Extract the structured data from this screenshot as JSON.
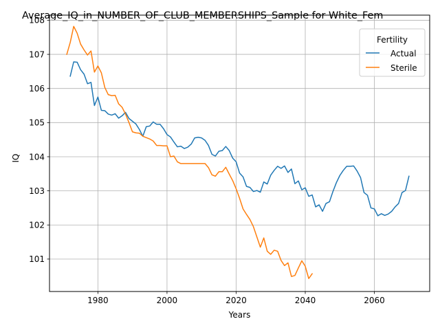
{
  "chart_data": {
    "type": "line",
    "title": "Average_IQ_in_NUMBER_OF_CLUB_MEMBERSHIPS_Sample for White_Fem",
    "xlabel": "Years",
    "ylabel": "IQ",
    "xlim": [
      1966,
      2076
    ],
    "ylim": [
      100.05,
      108.15
    ],
    "x_ticks": [
      1980,
      2000,
      2020,
      2040,
      2060
    ],
    "y_ticks": [
      101,
      102,
      103,
      104,
      105,
      106,
      107,
      108
    ],
    "grid": true,
    "legend": {
      "title": "Fertility",
      "placement": "top-right"
    },
    "series": [
      {
        "name": "Actual",
        "color": "#1f77b4",
        "x": [
          1972,
          1973,
          1974,
          1975,
          1976,
          1977,
          1978,
          1979,
          1980,
          1981,
          1982,
          1983,
          1984,
          1985,
          1986,
          1987,
          1988,
          1989,
          1990,
          1991,
          1992,
          1993,
          1994,
          1995,
          1996,
          1997,
          1998,
          1999,
          2000,
          2001,
          2002,
          2003,
          2004,
          2005,
          2006,
          2007,
          2008,
          2009,
          2010,
          2011,
          2012,
          2013,
          2014,
          2015,
          2016,
          2017,
          2018,
          2019,
          2020,
          2021,
          2022,
          2023,
          2024,
          2025,
          2026,
          2027,
          2028,
          2029,
          2030,
          2031,
          2032,
          2033,
          2034,
          2035,
          2036,
          2037,
          2038,
          2039,
          2040,
          2041,
          2042,
          2043,
          2044,
          2045,
          2046,
          2047,
          2048,
          2049,
          2050,
          2051,
          2052,
          2053,
          2054,
          2055,
          2056,
          2057,
          2058,
          2059,
          2060,
          2061,
          2062,
          2063,
          2064,
          2065,
          2066,
          2067,
          2068,
          2069,
          2070
        ],
        "values": [
          106.36,
          106.78,
          106.77,
          106.55,
          106.42,
          106.14,
          106.18,
          105.5,
          105.75,
          105.36,
          105.35,
          105.25,
          105.22,
          105.26,
          105.13,
          105.2,
          105.3,
          105.12,
          105.04,
          104.96,
          104.8,
          104.6,
          104.88,
          104.9,
          105.02,
          104.95,
          104.95,
          104.82,
          104.65,
          104.58,
          104.43,
          104.29,
          104.31,
          104.24,
          104.28,
          104.37,
          104.55,
          104.57,
          104.55,
          104.48,
          104.33,
          104.07,
          104.02,
          104.16,
          104.18,
          104.3,
          104.18,
          103.96,
          103.85,
          103.52,
          103.41,
          103.13,
          103.1,
          102.98,
          103.01,
          102.96,
          103.26,
          103.2,
          103.46,
          103.6,
          103.72,
          103.66,
          103.73,
          103.54,
          103.64,
          103.21,
          103.29,
          103.03,
          103.09,
          102.84,
          102.88,
          102.53,
          102.59,
          102.4,
          102.63,
          102.68,
          102.98,
          103.24,
          103.45,
          103.6,
          103.72,
          103.72,
          103.73,
          103.58,
          103.39,
          102.95,
          102.87,
          102.5,
          102.47,
          102.27,
          102.33,
          102.28,
          102.32,
          102.4,
          102.53,
          102.63,
          102.95,
          103.01,
          103.43
        ]
      },
      {
        "name": "Sterile",
        "color": "#ff7f0e",
        "x": [
          1971,
          1972,
          1973,
          1974,
          1975,
          1976,
          1977,
          1978,
          1979,
          1980,
          1981,
          1982,
          1983,
          1984,
          1985,
          1986,
          1987,
          1988,
          1989,
          1990,
          1991,
          1992,
          1993,
          1994,
          1995,
          1996,
          1997,
          1998,
          1999,
          2000,
          2001,
          2002,
          2003,
          2004,
          2005,
          2006,
          2007,
          2008,
          2009,
          2010,
          2011,
          2012,
          2013,
          2014,
          2015,
          2016,
          2017,
          2018,
          2019,
          2020,
          2021,
          2022,
          2023,
          2024,
          2025,
          2026,
          2027,
          2028,
          2029,
          2030,
          2031,
          2032,
          2033,
          2034,
          2035,
          2036,
          2037,
          2038,
          2039,
          2040,
          2041,
          2042
        ],
        "values": [
          107.0,
          107.35,
          107.82,
          107.62,
          107.3,
          107.13,
          106.98,
          107.1,
          106.48,
          106.66,
          106.46,
          106.03,
          105.82,
          105.79,
          105.8,
          105.55,
          105.45,
          105.25,
          105.0,
          104.73,
          104.7,
          104.69,
          104.6,
          104.56,
          104.52,
          104.46,
          104.33,
          104.33,
          104.32,
          104.32,
          104.0,
          104.02,
          103.85,
          103.8,
          103.8,
          103.8,
          103.8,
          103.8,
          103.8,
          103.8,
          103.8,
          103.68,
          103.47,
          103.43,
          103.56,
          103.56,
          103.69,
          103.49,
          103.3,
          103.06,
          102.78,
          102.47,
          102.31,
          102.16,
          101.95,
          101.65,
          101.35,
          101.62,
          101.23,
          101.14,
          101.26,
          101.23,
          100.96,
          100.81,
          100.89,
          100.49,
          100.52,
          100.74,
          100.95,
          100.79,
          100.43,
          100.57
        ]
      }
    ]
  }
}
